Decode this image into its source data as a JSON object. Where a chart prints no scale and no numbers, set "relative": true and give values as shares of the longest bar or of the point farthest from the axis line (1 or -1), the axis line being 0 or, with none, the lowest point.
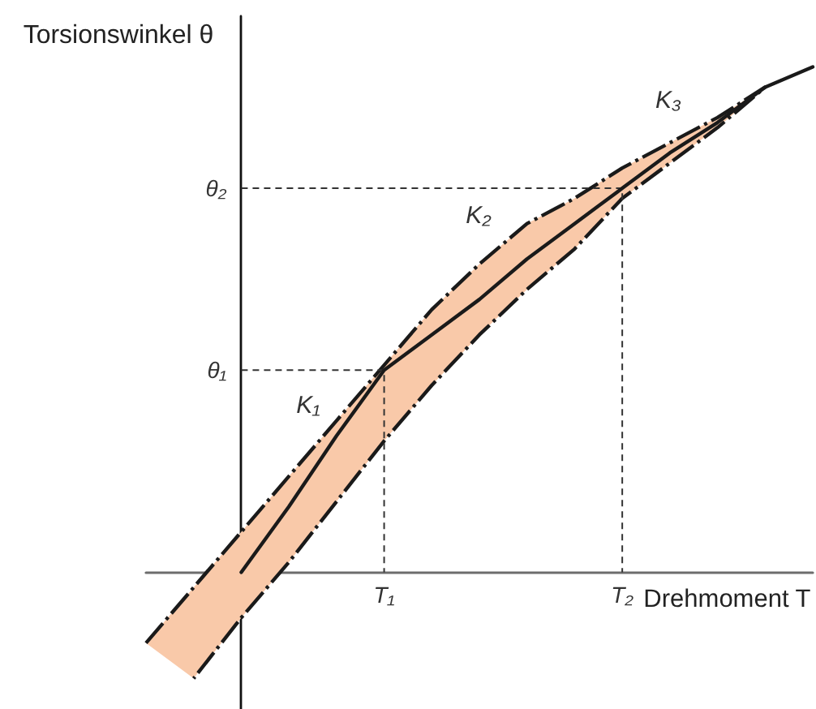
{
  "chart_data": {
    "type": "line",
    "relative": true,
    "xlabel": "Drehmoment T",
    "ylabel": "Torsionswinkel θ",
    "marker": "none",
    "categories": [
      null,
      null,
      null,
      null,
      null,
      "T₁",
      null,
      null,
      null,
      null,
      "T₂",
      null,
      null,
      null,
      null
    ],
    "series": [
      {
        "color": "#1a1a1a",
        "line_style": "solid",
        "values": [
          null,
          null,
          0,
          0.13,
          0.27,
          0.4,
          0.47,
          0.54,
          0.62,
          0.69,
          0.76,
          0.83,
          0.89,
          0.96,
          1.0
        ],
        "lower": [
          -0.14,
          -0.21,
          -0.09,
          0.02,
          0.14,
          0.26,
          0.37,
          0.47,
          0.56,
          0.64,
          0.74,
          0.81,
          0.88,
          0.96,
          null
        ],
        "upper": [
          -0.14,
          -0.03,
          0.08,
          0.19,
          0.3,
          0.41,
          0.52,
          0.61,
          0.69,
          0.74,
          0.8,
          0.85,
          0.9,
          0.96,
          null
        ]
      }
    ],
    "ref_lines": [
      {
        "axis": "y",
        "value": 0.4,
        "label": "θ₁",
        "color": "#333333",
        "line_style": "dashed"
      },
      {
        "axis": "y",
        "value": 0.76,
        "label": "θ₂",
        "color": "#333333",
        "line_style": "dashed"
      }
    ],
    "annotations": [
      "K₁",
      "K₂",
      "K₃"
    ]
  }
}
